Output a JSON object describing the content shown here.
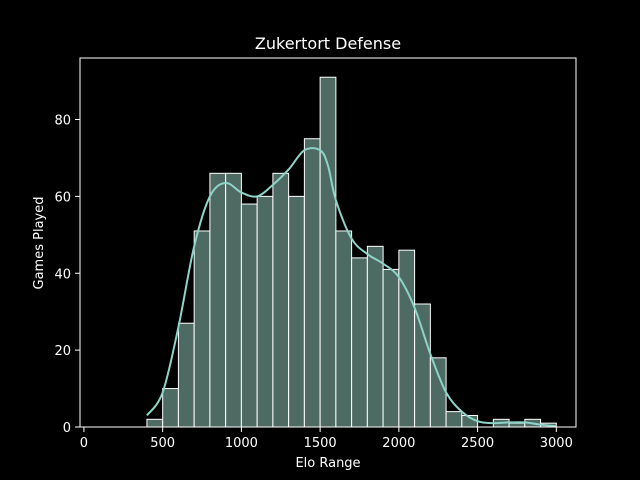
{
  "chart_data": {
    "type": "bar",
    "title": "Zukertort Defense",
    "xlabel": "Elo Range",
    "ylabel": "Games Played",
    "xlim": [
      -25,
      3125
    ],
    "ylim": [
      0,
      96
    ],
    "xticks": [
      0,
      500,
      1000,
      1500,
      2000,
      2500,
      3000
    ],
    "yticks": [
      0,
      20,
      40,
      60,
      80
    ],
    "bin_width": 100,
    "bins": [
      {
        "x0": 400,
        "x1": 500,
        "count": 2
      },
      {
        "x0": 500,
        "x1": 600,
        "count": 10
      },
      {
        "x0": 600,
        "x1": 700,
        "count": 27
      },
      {
        "x0": 700,
        "x1": 800,
        "count": 51
      },
      {
        "x0": 800,
        "x1": 900,
        "count": 66
      },
      {
        "x0": 900,
        "x1": 1000,
        "count": 66
      },
      {
        "x0": 1000,
        "x1": 1100,
        "count": 58
      },
      {
        "x0": 1100,
        "x1": 1200,
        "count": 60
      },
      {
        "x0": 1200,
        "x1": 1300,
        "count": 66
      },
      {
        "x0": 1300,
        "x1": 1400,
        "count": 60
      },
      {
        "x0": 1400,
        "x1": 1500,
        "count": 75
      },
      {
        "x0": 1500,
        "x1": 1600,
        "count": 91
      },
      {
        "x0": 1600,
        "x1": 1700,
        "count": 51
      },
      {
        "x0": 1700,
        "x1": 1800,
        "count": 44
      },
      {
        "x0": 1800,
        "x1": 1900,
        "count": 47
      },
      {
        "x0": 1900,
        "x1": 2000,
        "count": 41
      },
      {
        "x0": 2000,
        "x1": 2100,
        "count": 46
      },
      {
        "x0": 2100,
        "x1": 2200,
        "count": 32
      },
      {
        "x0": 2200,
        "x1": 2300,
        "count": 18
      },
      {
        "x0": 2300,
        "x1": 2400,
        "count": 4
      },
      {
        "x0": 2400,
        "x1": 2500,
        "count": 3
      },
      {
        "x0": 2500,
        "x1": 2600,
        "count": 0
      },
      {
        "x0": 2600,
        "x1": 2700,
        "count": 2
      },
      {
        "x0": 2700,
        "x1": 2800,
        "count": 1
      },
      {
        "x0": 2800,
        "x1": 2900,
        "count": 2
      },
      {
        "x0": 2900,
        "x1": 3000,
        "count": 1
      }
    ],
    "kde": {
      "x": [
        400,
        500,
        600,
        700,
        800,
        900,
        1000,
        1100,
        1200,
        1300,
        1400,
        1500,
        1550,
        1600,
        1700,
        1800,
        1900,
        2000,
        2100,
        2200,
        2300,
        2400,
        2500,
        2600,
        2700,
        2800,
        2900,
        3000
      ],
      "y": [
        3,
        9,
        26,
        47,
        60,
        63.5,
        61,
        60,
        63,
        67,
        72,
        72,
        68,
        59,
        49,
        45,
        42.5,
        39,
        31,
        19,
        9,
        4,
        1.5,
        1,
        1.2,
        1.2,
        0.6,
        0.2
      ]
    },
    "grid": false,
    "legend": "none",
    "colors": {
      "background": "#000000",
      "bar_fill": "#4e6b63",
      "bar_edge": "#ffffff",
      "kde_line": "#8dd3c7",
      "axes": "#ffffff",
      "text": "#ffffff"
    }
  }
}
